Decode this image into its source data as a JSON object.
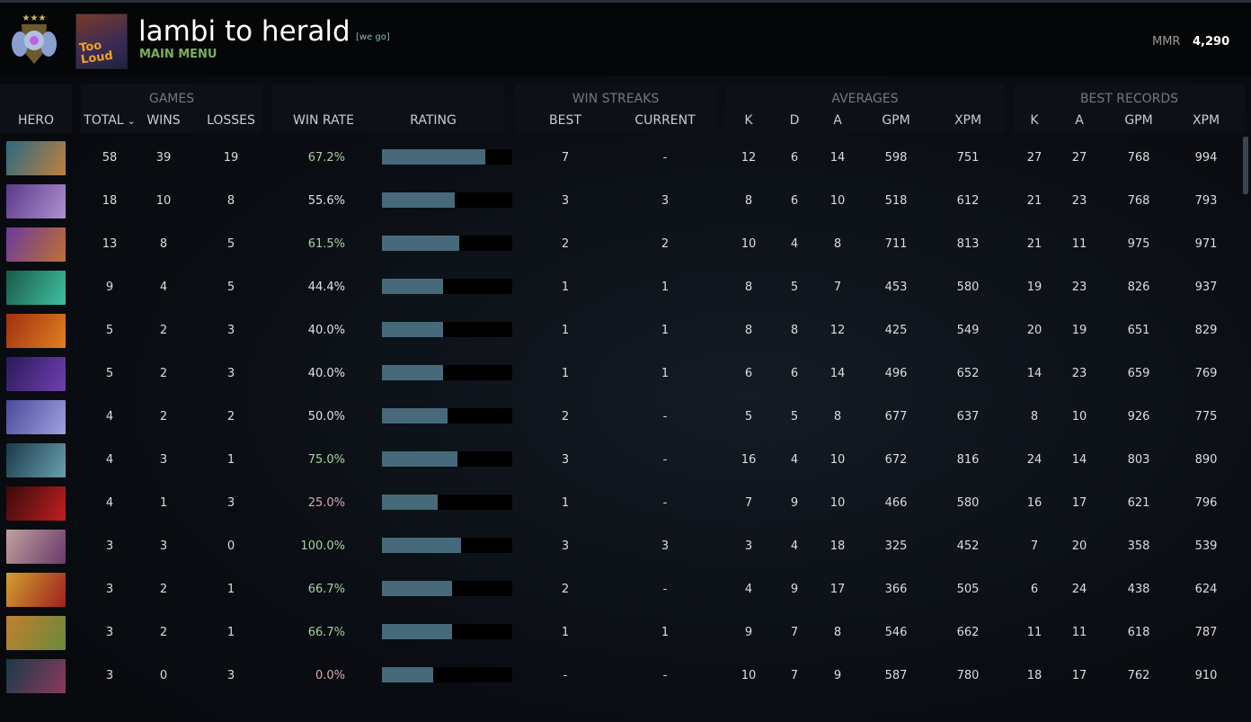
{
  "header": {
    "player_name": "lambi to herald",
    "tag": "[we go]",
    "main_menu": "MAIN MENU",
    "avatar_text": "Too Loud",
    "mmr_label": "MMR",
    "mmr_value": "4,290"
  },
  "groups": {
    "games": "GAMES",
    "win_streaks": "WIN STREAKS",
    "averages": "AVERAGES",
    "best_records": "BEST RECORDS"
  },
  "columns": [
    "HERO",
    "TOTAL",
    "WINS",
    "LOSSES",
    "WIN RATE",
    "RATING",
    "BEST",
    "CURRENT",
    "K",
    "D",
    "A",
    "GPM",
    "XPM",
    "K",
    "A",
    "GPM",
    "XPM"
  ],
  "sort_indicator": "⌄",
  "colors": {
    "win_high": "#a8d0a0",
    "win_mid": "#e0e0e0",
    "win_low": "#d8aaa8",
    "bar": "#466a7a"
  },
  "rows": [
    {
      "portrait": [
        "#2a6a80",
        "#c08040"
      ],
      "total": "58",
      "wins": "39",
      "losses": "19",
      "win_rate": "67.2%",
      "rating": 0.79,
      "best": "7",
      "current": "-",
      "k": "12",
      "d": "6",
      "a": "14",
      "gpm": "598",
      "xpm": "751",
      "bk": "27",
      "ba": "27",
      "bgpm": "768",
      "bxpm": "994"
    },
    {
      "portrait": [
        "#5a3a8a",
        "#b090d0"
      ],
      "total": "18",
      "wins": "10",
      "losses": "8",
      "win_rate": "55.6%",
      "rating": 0.56,
      "best": "3",
      "current": "3",
      "k": "8",
      "d": "6",
      "a": "10",
      "gpm": "518",
      "xpm": "612",
      "bk": "21",
      "ba": "23",
      "bgpm": "768",
      "bxpm": "793"
    },
    {
      "portrait": [
        "#6a3aa0",
        "#c07030"
      ],
      "total": "13",
      "wins": "8",
      "losses": "5",
      "win_rate": "61.5%",
      "rating": 0.59,
      "best": "2",
      "current": "2",
      "k": "10",
      "d": "4",
      "a": "8",
      "gpm": "711",
      "xpm": "813",
      "bk": "21",
      "ba": "11",
      "bgpm": "975",
      "bxpm": "971"
    },
    {
      "portrait": [
        "#1a5a4a",
        "#40c0a0"
      ],
      "total": "9",
      "wins": "4",
      "losses": "5",
      "win_rate": "44.4%",
      "rating": 0.47,
      "best": "1",
      "current": "1",
      "k": "8",
      "d": "5",
      "a": "7",
      "gpm": "453",
      "xpm": "580",
      "bk": "19",
      "ba": "23",
      "bgpm": "826",
      "bxpm": "937"
    },
    {
      "portrait": [
        "#a03010",
        "#e08020"
      ],
      "total": "5",
      "wins": "2",
      "losses": "3",
      "win_rate": "40.0%",
      "rating": 0.47,
      "best": "1",
      "current": "1",
      "k": "8",
      "d": "8",
      "a": "12",
      "gpm": "425",
      "xpm": "549",
      "bk": "20",
      "ba": "19",
      "bgpm": "651",
      "bxpm": "829"
    },
    {
      "portrait": [
        "#2a1a5a",
        "#7040b0"
      ],
      "total": "5",
      "wins": "2",
      "losses": "3",
      "win_rate": "40.0%",
      "rating": 0.47,
      "best": "1",
      "current": "1",
      "k": "6",
      "d": "6",
      "a": "14",
      "gpm": "496",
      "xpm": "652",
      "bk": "14",
      "ba": "23",
      "bgpm": "659",
      "bxpm": "769"
    },
    {
      "portrait": [
        "#4a4a9a",
        "#a0a0e0"
      ],
      "total": "4",
      "wins": "2",
      "losses": "2",
      "win_rate": "50.0%",
      "rating": 0.5,
      "best": "2",
      "current": "-",
      "k": "5",
      "d": "5",
      "a": "8",
      "gpm": "677",
      "xpm": "637",
      "bk": "8",
      "ba": "10",
      "bgpm": "926",
      "bxpm": "775"
    },
    {
      "portrait": [
        "#1a3a4a",
        "#6aa0b0"
      ],
      "total": "4",
      "wins": "3",
      "losses": "1",
      "win_rate": "75.0%",
      "rating": 0.58,
      "best": "3",
      "current": "-",
      "k": "16",
      "d": "4",
      "a": "10",
      "gpm": "672",
      "xpm": "816",
      "bk": "24",
      "ba": "14",
      "bgpm": "803",
      "bxpm": "890"
    },
    {
      "portrait": [
        "#3a0a0a",
        "#c02020"
      ],
      "total": "4",
      "wins": "1",
      "losses": "3",
      "win_rate": "25.0%",
      "rating": 0.43,
      "best": "1",
      "current": "-",
      "k": "7",
      "d": "9",
      "a": "10",
      "gpm": "466",
      "xpm": "580",
      "bk": "16",
      "ba": "17",
      "bgpm": "621",
      "bxpm": "796"
    },
    {
      "portrait": [
        "#c0a0a0",
        "#6a3a6a"
      ],
      "total": "3",
      "wins": "3",
      "losses": "0",
      "win_rate": "100.0%",
      "rating": 0.61,
      "best": "3",
      "current": "3",
      "k": "3",
      "d": "4",
      "a": "18",
      "gpm": "325",
      "xpm": "452",
      "bk": "7",
      "ba": "20",
      "bgpm": "358",
      "bxpm": "539"
    },
    {
      "portrait": [
        "#d0a030",
        "#a02020"
      ],
      "total": "3",
      "wins": "2",
      "losses": "1",
      "win_rate": "66.7%",
      "rating": 0.54,
      "best": "2",
      "current": "-",
      "k": "4",
      "d": "9",
      "a": "17",
      "gpm": "366",
      "xpm": "505",
      "bk": "6",
      "ba": "24",
      "bgpm": "438",
      "bxpm": "624"
    },
    {
      "portrait": [
        "#c08030",
        "#6a8a3a"
      ],
      "total": "3",
      "wins": "2",
      "losses": "1",
      "win_rate": "66.7%",
      "rating": 0.54,
      "best": "1",
      "current": "1",
      "k": "9",
      "d": "7",
      "a": "8",
      "gpm": "546",
      "xpm": "662",
      "bk": "11",
      "ba": "11",
      "bgpm": "618",
      "bxpm": "787"
    },
    {
      "portrait": [
        "#1a3a4a",
        "#8a3a5a"
      ],
      "total": "3",
      "wins": "0",
      "losses": "3",
      "win_rate": "0.0%",
      "rating": 0.39,
      "best": "-",
      "current": "-",
      "k": "10",
      "d": "7",
      "a": "9",
      "gpm": "587",
      "xpm": "780",
      "bk": "18",
      "ba": "17",
      "bgpm": "762",
      "bxpm": "910"
    }
  ]
}
